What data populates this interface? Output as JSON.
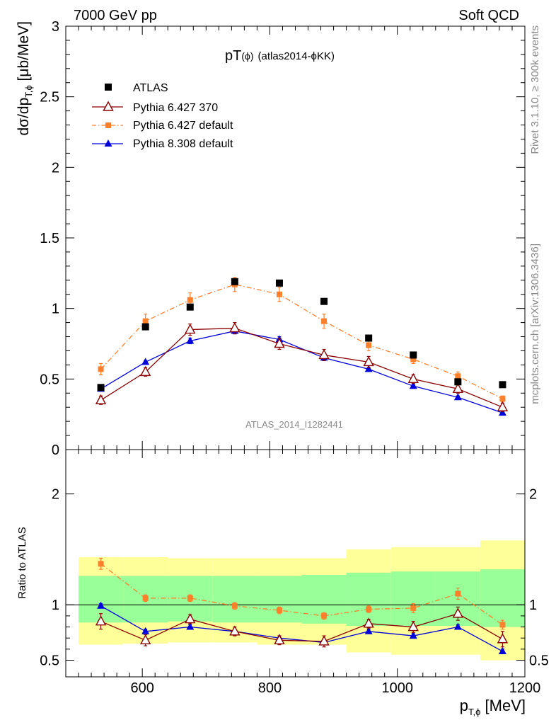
{
  "header": {
    "left": "7000 GeV pp",
    "right": "Soft QCD"
  },
  "plot_title": {
    "main": "pT",
    "paren": "(ϕ)",
    "detail": "(atlas2014-ϕKK)"
  },
  "watermark": "ATLAS_2014_I1282441",
  "side_labels": {
    "top": "Rivet 3.1.10, ≥ 300k events",
    "bottom": "mcplots.cern.ch [arXiv:1306.3436]"
  },
  "axes": {
    "ylabel_main": "dσ/dp",
    "ylabel_main_sub": "T,ϕ",
    "ylabel_main_unit": " [μb/MeV]",
    "ylabel_ratio": "Ratio to ATLAS",
    "xlabel": "p",
    "xlabel_sub": "T,ϕ",
    "xlabel_unit": " [MeV]"
  },
  "legend": {
    "atlas": "ATLAS",
    "py370": "Pythia 6.427 370",
    "pydef": "Pythia 6.427 default",
    "py8": "Pythia 8.308 default"
  },
  "colors": {
    "data": "#000000",
    "py370": "#8b0000",
    "pydef": "#ff7f2a",
    "py8": "#0000dd",
    "band_outer": "#ffff99",
    "band_inner": "#99ff99"
  },
  "chart_data": [
    {
      "type": "scatter",
      "xlim": [
        480,
        1200
      ],
      "ylim": [
        0,
        3
      ],
      "yticks": [
        0,
        0.5,
        1,
        1.5,
        2,
        2.5,
        3
      ],
      "ytick_labels": [
        "0",
        "0.5",
        "1",
        "1.5",
        "2",
        "2.5",
        "3"
      ],
      "x": [
        535,
        605,
        675,
        745,
        815,
        885,
        955,
        1025,
        1095,
        1165
      ],
      "series": [
        {
          "name": "ATLAS",
          "values": [
            0.44,
            0.87,
            1.01,
            1.19,
            1.18,
            1.05,
            0.79,
            0.67,
            0.48,
            0.46
          ]
        },
        {
          "name": "Pythia 6.427 370",
          "values": [
            0.35,
            0.55,
            0.85,
            0.86,
            0.75,
            0.67,
            0.62,
            0.5,
            0.43,
            0.3
          ],
          "errors": [
            0.03,
            0.03,
            0.04,
            0.04,
            0.04,
            0.04,
            0.04,
            0.03,
            0.03,
            0.03
          ]
        },
        {
          "name": "Pythia 6.427 default",
          "values": [
            0.57,
            0.91,
            1.06,
            1.17,
            1.1,
            0.91,
            0.74,
            0.64,
            0.52,
            0.36
          ],
          "errors": [
            0.04,
            0.05,
            0.05,
            0.05,
            0.05,
            0.05,
            0.04,
            0.03,
            0.03,
            0.02
          ]
        },
        {
          "name": "Pythia 8.308 default",
          "values": [
            0.43,
            0.62,
            0.77,
            0.84,
            0.78,
            0.65,
            0.57,
            0.45,
            0.37,
            0.26
          ],
          "errors": [
            0.01,
            0.01,
            0.02,
            0.02,
            0.02,
            0.01,
            0.01,
            0.01,
            0.01,
            0.01
          ]
        }
      ]
    },
    {
      "type": "line",
      "ylabel": "Ratio to ATLAS",
      "xlim": [
        480,
        1200
      ],
      "ylim": [
        0.35,
        2.4
      ],
      "xticks": [
        600,
        800,
        1000,
        1200
      ],
      "xtick_labels": [
        "600",
        "800",
        "1000",
        "1200"
      ],
      "yticks": [
        0.5,
        1,
        2
      ],
      "ytick_labels": [
        "0.5",
        "1",
        "2"
      ],
      "bins": [
        [
          500,
          570
        ],
        [
          570,
          640
        ],
        [
          640,
          710
        ],
        [
          710,
          780
        ],
        [
          780,
          850
        ],
        [
          850,
          920
        ],
        [
          920,
          990
        ],
        [
          990,
          1060
        ],
        [
          1060,
          1130
        ],
        [
          1130,
          1200
        ]
      ],
      "band_outer": [
        [
          0.64,
          1.43
        ],
        [
          0.65,
          1.43
        ],
        [
          0.66,
          1.42
        ],
        [
          0.66,
          1.42
        ],
        [
          0.64,
          1.42
        ],
        [
          0.64,
          1.42
        ],
        [
          0.57,
          1.5
        ],
        [
          0.55,
          1.52
        ],
        [
          0.55,
          1.52
        ],
        [
          0.5,
          1.58
        ]
      ],
      "band_inner": [
        [
          0.84,
          1.26
        ],
        [
          0.84,
          1.26
        ],
        [
          0.85,
          1.26
        ],
        [
          0.84,
          1.26
        ],
        [
          0.84,
          1.26
        ],
        [
          0.83,
          1.27
        ],
        [
          0.81,
          1.29
        ],
        [
          0.81,
          1.3
        ],
        [
          0.81,
          1.3
        ],
        [
          0.8,
          1.32
        ]
      ],
      "x": [
        535,
        605,
        675,
        745,
        815,
        885,
        955,
        1025,
        1095,
        1165
      ],
      "series": [
        {
          "name": "Pythia 6.427 370",
          "values": [
            0.85,
            0.68,
            0.87,
            0.76,
            0.68,
            0.67,
            0.83,
            0.8,
            0.92,
            0.69
          ],
          "errors": [
            0.07,
            0.05,
            0.04,
            0.04,
            0.04,
            0.05,
            0.04,
            0.05,
            0.06,
            0.07
          ]
        },
        {
          "name": "Pythia 6.427 default",
          "values": [
            1.37,
            1.06,
            1.06,
            0.99,
            0.95,
            0.9,
            0.96,
            0.97,
            1.1,
            0.82
          ],
          "errors": [
            0.05,
            0.03,
            0.03,
            0.03,
            0.03,
            0.03,
            0.03,
            0.04,
            0.05,
            0.04
          ]
        },
        {
          "name": "Pythia 8.308 default",
          "values": [
            0.99,
            0.76,
            0.8,
            0.76,
            0.7,
            0.66,
            0.76,
            0.72,
            0.8,
            0.58
          ],
          "errors": [
            0.02,
            0.02,
            0.02,
            0.02,
            0.02,
            0.02,
            0.02,
            0.02,
            0.02,
            0.02
          ]
        }
      ]
    }
  ]
}
